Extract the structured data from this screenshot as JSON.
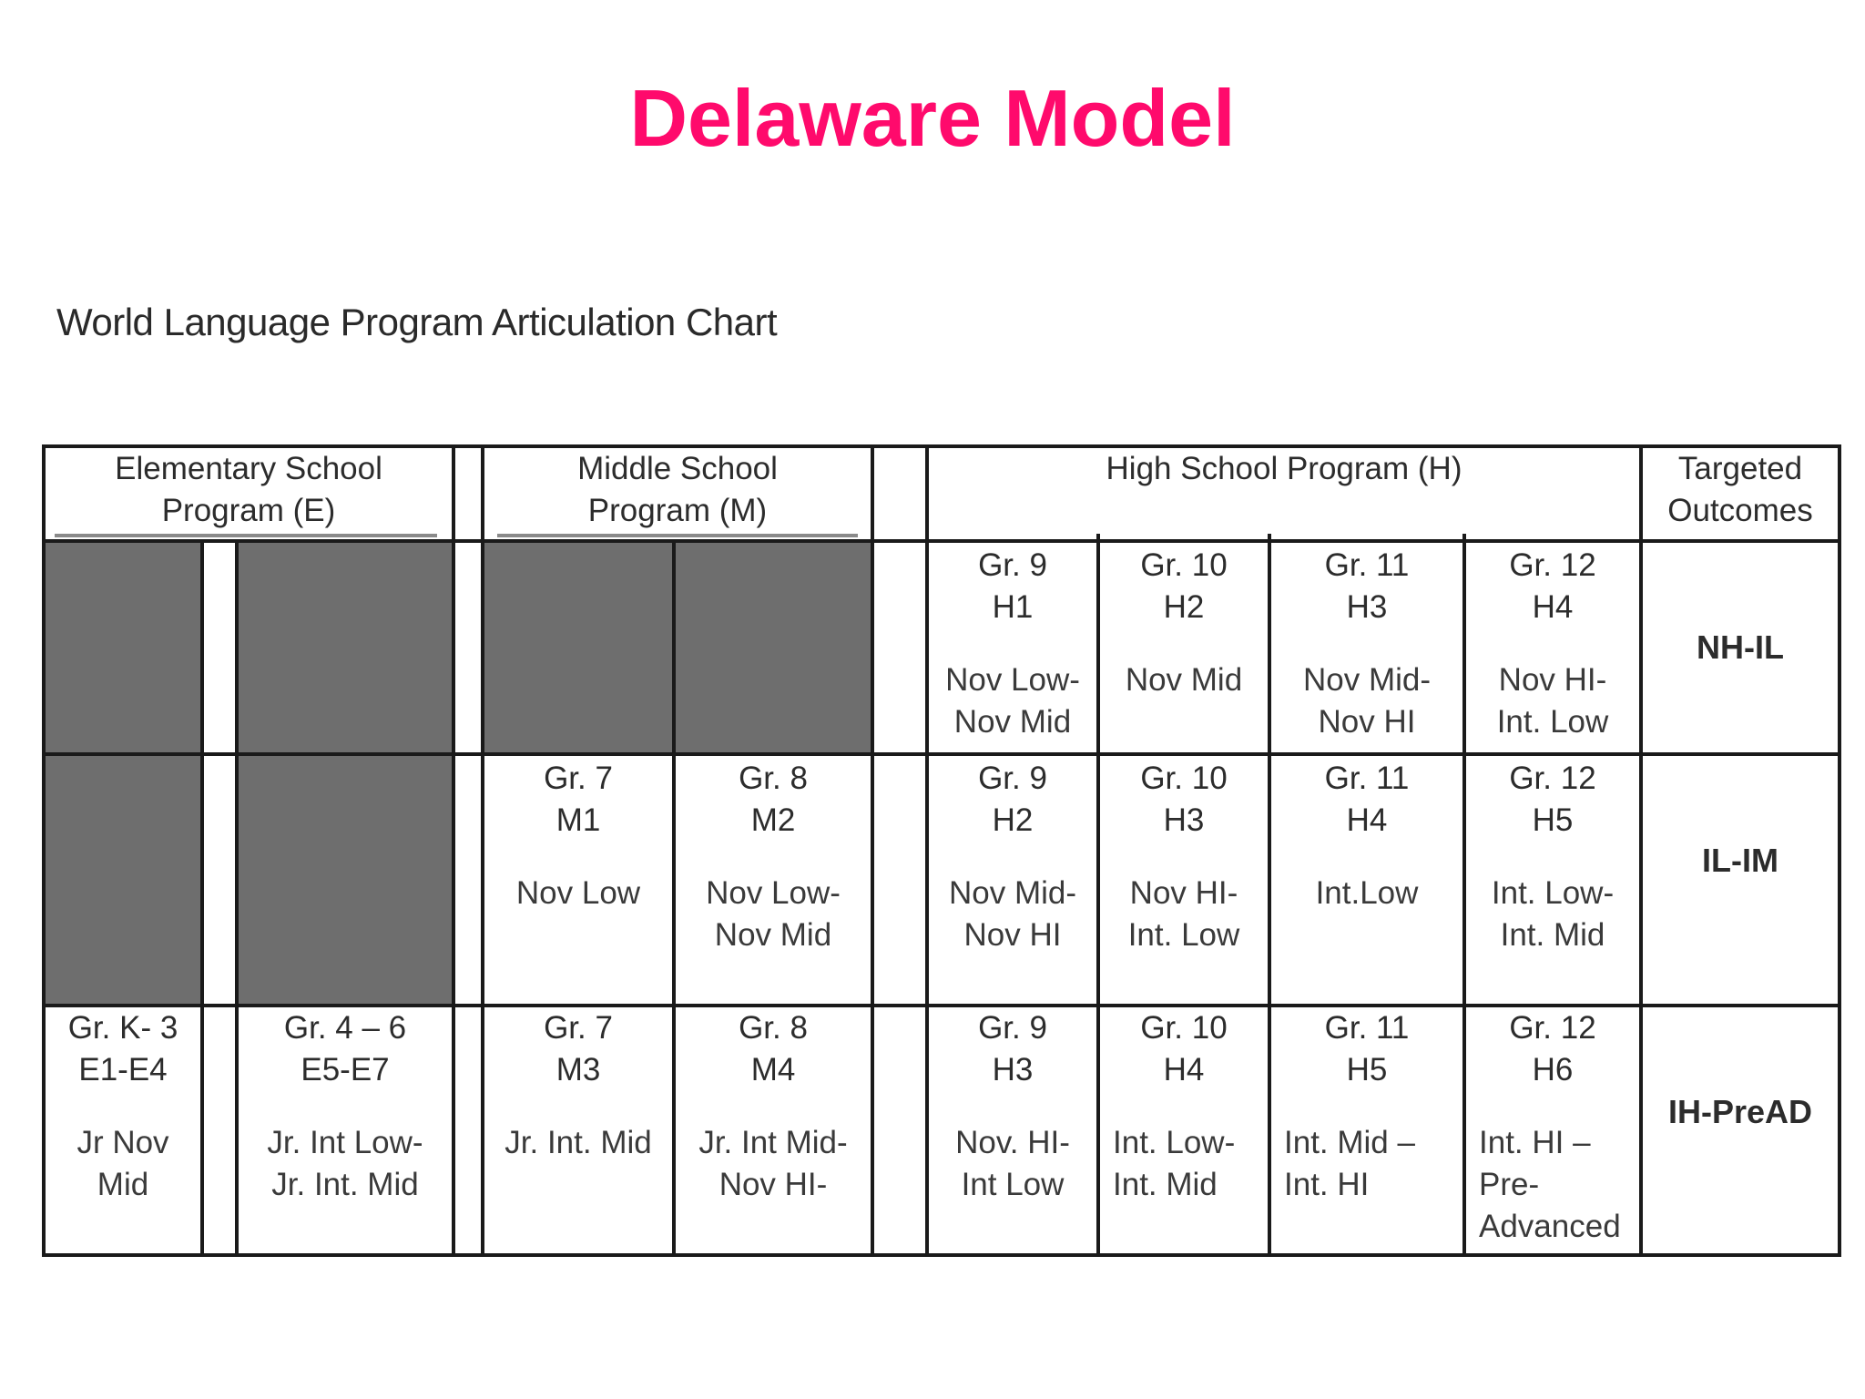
{
  "title": "Delaware Model",
  "subtitle": "World Language Program Articulation Chart",
  "headers": {
    "elementary": [
      "Elementary School",
      "Program  (E)"
    ],
    "middle": [
      "Middle School",
      "Program (M)"
    ],
    "high": [
      "High School Program (H)"
    ],
    "outcomes": [
      "Targeted",
      "Outcomes"
    ]
  },
  "rows": [
    {
      "cells": [
        {
          "grade": "Gr. 9",
          "code": "H1",
          "level": [
            "Nov Low-",
            "Nov Mid"
          ]
        },
        {
          "grade": "Gr. 10",
          "code": "H2",
          "level": [
            "Nov Mid"
          ]
        },
        {
          "grade": "Gr. 11",
          "code": "H3",
          "level": [
            "Nov Mid-",
            "Nov HI"
          ]
        },
        {
          "grade": "Gr. 12",
          "code": "H4",
          "level": [
            "Nov HI-",
            "Int. Low"
          ]
        }
      ],
      "outcome": "NH-IL"
    },
    {
      "cells": [
        {
          "grade": "Gr. 7",
          "code": "M1",
          "level": [
            "Nov Low"
          ]
        },
        {
          "grade": "Gr. 8",
          "code": "M2",
          "level": [
            "Nov Low-",
            "Nov Mid"
          ]
        },
        {
          "grade": "Gr. 9",
          "code": "H2",
          "level": [
            "Nov Mid-",
            "Nov HI"
          ]
        },
        {
          "grade": "Gr. 10",
          "code": "H3",
          "level": [
            "Nov HI-",
            "Int. Low"
          ]
        },
        {
          "grade": "Gr. 11",
          "code": "H4",
          "level": [
            "Int.Low"
          ]
        },
        {
          "grade": "Gr. 12",
          "code": "H5",
          "level": [
            "Int. Low-",
            "Int. Mid"
          ]
        }
      ],
      "outcome": "IL-IM"
    },
    {
      "cells": [
        {
          "grade": "Gr. K- 3",
          "code": "E1-E4",
          "level": [
            "Jr Nov",
            "Mid"
          ]
        },
        {
          "grade": "Gr. 4 – 6",
          "code": "E5-E7",
          "level": [
            "Jr. Int Low-",
            "Jr. Int. Mid"
          ]
        },
        {
          "grade": "Gr. 7",
          "code": "M3",
          "level": [
            "Jr. Int. Mid"
          ]
        },
        {
          "grade": "Gr. 8",
          "code": "M4",
          "level": [
            "Jr. Int Mid-",
            "Nov HI-"
          ]
        },
        {
          "grade": "Gr. 9",
          "code": "H3",
          "level": [
            "Nov. HI-",
            "Int Low"
          ]
        },
        {
          "grade": "Gr. 10",
          "code": "H4",
          "level": [
            "Int. Low-",
            "Int. Mid"
          ]
        },
        {
          "grade": "Gr. 11",
          "code": "H5",
          "level": [
            "Int. Mid –",
            "Int. HI"
          ]
        },
        {
          "grade": "Gr. 12",
          "code": "H6",
          "level": [
            "Int. HI –",
            "Pre-",
            "Advanced"
          ]
        }
      ],
      "outcome": "IH-PreAD"
    }
  ],
  "colors": {
    "title": "#ff0a6c",
    "shade": "#6e6e6e",
    "rule": "#1a1a1a"
  }
}
